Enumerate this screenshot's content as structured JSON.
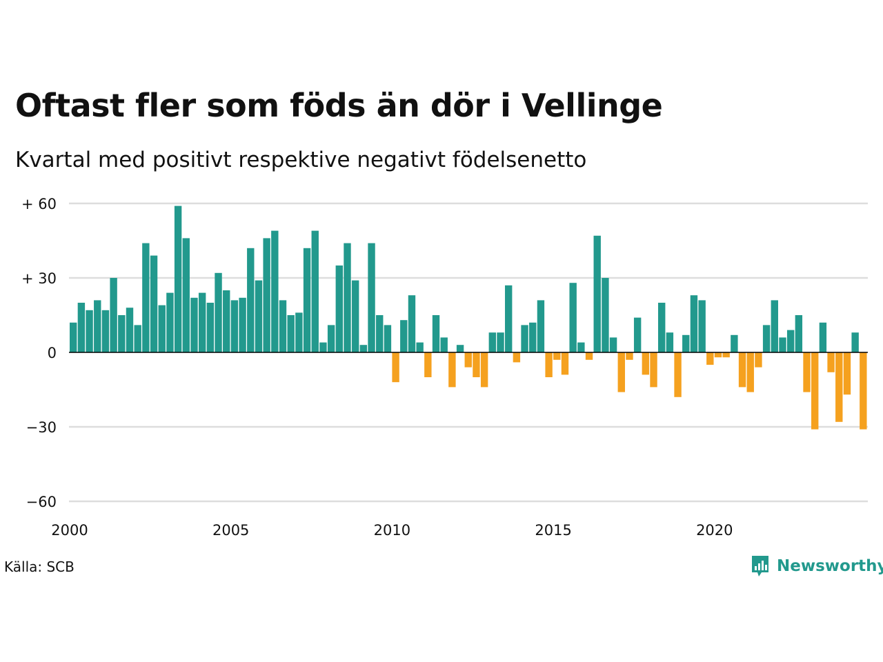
{
  "title": "Oftast fler som föds än dör i Vellinge",
  "subtitle": "Kvartal med positivt respektive negativt födelsenetto",
  "source": "Källa: SCB",
  "brand": {
    "name": "Newsworthy",
    "icon": "bar-chart-speech-bubble-icon"
  },
  "colors": {
    "positive": "#22998d",
    "negative": "#f5a11f",
    "grid": "#dddddd",
    "zero_line": "#000000"
  },
  "chart_data": {
    "type": "bar",
    "x_start": 2000.0,
    "x_step": 0.25,
    "xlim": [
      2000,
      2024.75
    ],
    "ylim": [
      -60,
      60
    ],
    "y_ticks": [
      60,
      30,
      0,
      -30,
      -60
    ],
    "y_tick_labels": [
      "+ 60",
      "+ 30",
      "0",
      "−30",
      "−60"
    ],
    "x_ticks": [
      2000,
      2005,
      2010,
      2015,
      2020
    ],
    "x_tick_labels": [
      "2000",
      "2005",
      "2010",
      "2015",
      "2020"
    ],
    "values": [
      12,
      20,
      17,
      21,
      17,
      30,
      15,
      18,
      11,
      44,
      39,
      19,
      24,
      59,
      46,
      22,
      24,
      20,
      32,
      25,
      21,
      22,
      42,
      29,
      46,
      49,
      21,
      15,
      16,
      42,
      49,
      4,
      11,
      35,
      44,
      29,
      3,
      44,
      15,
      11,
      -12,
      13,
      23,
      4,
      -10,
      15,
      6,
      -14,
      3,
      -6,
      -10,
      -14,
      8,
      8,
      27,
      -4,
      11,
      12,
      21,
      -10,
      -3,
      -9,
      28,
      4,
      -3,
      47,
      30,
      6,
      -16,
      -3,
      14,
      -9,
      -14,
      20,
      8,
      -18,
      7,
      23,
      21,
      -5,
      -2,
      -2,
      7,
      -14,
      -16,
      -6,
      11,
      21,
      6,
      9,
      15,
      -16,
      -31,
      12,
      -8,
      -28,
      -17,
      8,
      -31
    ],
    "grid": true,
    "legend": "none"
  }
}
